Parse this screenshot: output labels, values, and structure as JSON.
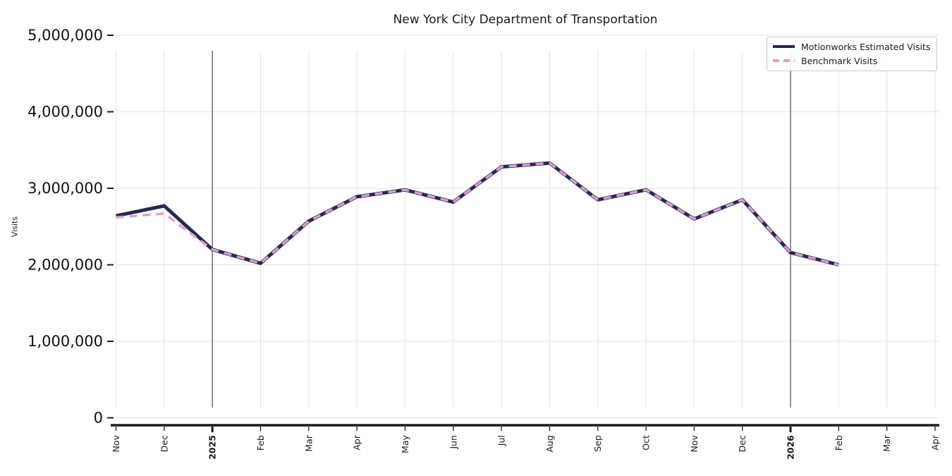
{
  "chart": {
    "title": "New York City Department of Transportation",
    "ylabel": "Visits",
    "legend": [
      {
        "label": "Motionworks Estimated Visits",
        "color": "#242a56",
        "style": "solid"
      },
      {
        "label": "Benchmark Visits",
        "color": "#dd9fc7",
        "style": "dashed"
      }
    ]
  },
  "chart_data": {
    "type": "line",
    "title": "New York City Department of Transportation",
    "xlabel": "",
    "ylabel": "Visits",
    "x_tick_labels": [
      "Nov",
      "Dec",
      "2025",
      "Feb",
      "Mar",
      "Apr",
      "May",
      "Jun",
      "Jul",
      "Aug",
      "Sep",
      "Oct",
      "Nov",
      "Dec",
      "2026",
      "Feb",
      "Mar",
      "Apr"
    ],
    "bold_x_tick_indices": [
      2,
      14
    ],
    "year_separator_indices": [
      2,
      14
    ],
    "y_ticks": [
      0,
      1000000,
      2000000,
      3000000,
      4000000,
      5000000
    ],
    "y_tick_labels": [
      "0",
      "1,000,000",
      "2,000,000",
      "3,000,000",
      "4,000,000",
      "5,000,000"
    ],
    "ylim": [
      0,
      5000000
    ],
    "grid": true,
    "legend_position": "upper right",
    "series": [
      {
        "name": "Motionworks Estimated Visits",
        "color": "#242a56",
        "dash": false,
        "width": 5,
        "values": [
          2640000,
          2770000,
          2200000,
          2020000,
          2570000,
          2890000,
          2980000,
          2820000,
          3280000,
          3330000,
          2850000,
          2980000,
          2600000,
          2850000,
          2160000,
          2000000,
          null,
          null
        ]
      },
      {
        "name": "Benchmark Visits",
        "color": "#dd9fc7",
        "dash": true,
        "width": 3.5,
        "values": [
          2620000,
          2670000,
          2200000,
          2020000,
          2570000,
          2890000,
          2980000,
          2820000,
          3280000,
          3330000,
          2850000,
          2980000,
          2600000,
          2850000,
          2160000,
          2000000,
          null,
          null
        ]
      }
    ]
  }
}
